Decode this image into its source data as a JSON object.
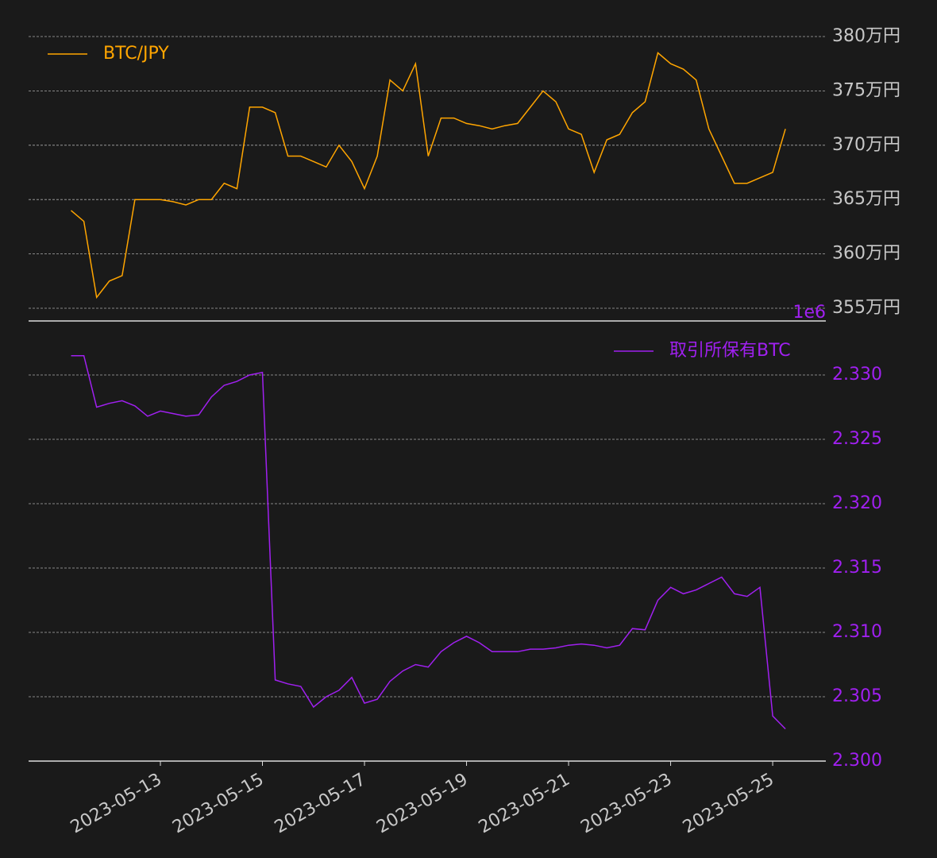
{
  "chart_data": [
    {
      "type": "line",
      "x": [
        "2023-05-11T06:00",
        "2023-05-11T12:00",
        "2023-05-11T18:00",
        "2023-05-12T00:00",
        "2023-05-12T06:00",
        "2023-05-12T12:00",
        "2023-05-12T18:00",
        "2023-05-13T00:00",
        "2023-05-13T06:00",
        "2023-05-13T12:00",
        "2023-05-13T18:00",
        "2023-05-14T00:00",
        "2023-05-14T06:00",
        "2023-05-14T12:00",
        "2023-05-14T18:00",
        "2023-05-15T00:00",
        "2023-05-15T06:00",
        "2023-05-15T12:00",
        "2023-05-15T18:00",
        "2023-05-16T00:00",
        "2023-05-16T06:00",
        "2023-05-16T12:00",
        "2023-05-16T18:00",
        "2023-05-17T00:00",
        "2023-05-17T06:00",
        "2023-05-17T12:00",
        "2023-05-17T18:00",
        "2023-05-18T00:00",
        "2023-05-18T06:00",
        "2023-05-18T12:00",
        "2023-05-18T18:00",
        "2023-05-19T00:00",
        "2023-05-19T06:00",
        "2023-05-19T12:00",
        "2023-05-19T18:00",
        "2023-05-20T00:00",
        "2023-05-20T06:00",
        "2023-05-20T12:00",
        "2023-05-20T18:00",
        "2023-05-21T00:00",
        "2023-05-21T06:00",
        "2023-05-21T12:00",
        "2023-05-21T18:00",
        "2023-05-22T00:00",
        "2023-05-22T06:00",
        "2023-05-22T12:00",
        "2023-05-22T18:00",
        "2023-05-23T00:00",
        "2023-05-23T06:00",
        "2023-05-23T12:00",
        "2023-05-23T18:00",
        "2023-05-24T00:00",
        "2023-05-24T06:00",
        "2023-05-24T12:00",
        "2023-05-24T18:00",
        "2023-05-25T00:00",
        "2023-05-25T06:00"
      ],
      "series": [
        {
          "name": "BTC/JPY",
          "color": "#ffa500",
          "values": [
            3640000,
            3630000,
            3560000,
            3575000,
            3580000,
            3650000,
            3650000,
            3650000,
            3648000,
            3645000,
            3650000,
            3650000,
            3665000,
            3660000,
            3735000,
            3735000,
            3730000,
            3690000,
            3690000,
            3685000,
            3680000,
            3700000,
            3685000,
            3660000,
            3690000,
            3760000,
            3750000,
            3775000,
            3690000,
            3725000,
            3725000,
            3720000,
            3718000,
            3715000,
            3718000,
            3720000,
            3735000,
            3750000,
            3740000,
            3715000,
            3710000,
            3675000,
            3705000,
            3710000,
            3730000,
            3740000,
            3785000,
            3775000,
            3770000,
            3760000,
            3715000,
            3690000,
            3665000,
            3665000,
            3670000,
            3675000,
            3715000
          ]
        }
      ],
      "xlim": [
        "2023-05-10T10:00",
        "2023-05-26T01:00"
      ],
      "ylim": [
        3538300,
        3811700
      ],
      "yticks": [
        {
          "value": 3550000,
          "label": "355万円"
        },
        {
          "value": 3600000,
          "label": "360万円"
        },
        {
          "value": 3650000,
          "label": "365万円"
        },
        {
          "value": 3700000,
          "label": "370万円"
        },
        {
          "value": 3750000,
          "label": "375万円"
        },
        {
          "value": 3800000,
          "label": "380万円"
        }
      ],
      "grid": true,
      "legend": "upper left"
    },
    {
      "type": "line",
      "x": [
        "2023-05-11T06:00",
        "2023-05-11T12:00",
        "2023-05-11T18:00",
        "2023-05-12T00:00",
        "2023-05-12T06:00",
        "2023-05-12T12:00",
        "2023-05-12T18:00",
        "2023-05-13T00:00",
        "2023-05-13T06:00",
        "2023-05-13T12:00",
        "2023-05-13T18:00",
        "2023-05-14T00:00",
        "2023-05-14T06:00",
        "2023-05-14T12:00",
        "2023-05-14T18:00",
        "2023-05-15T00:00",
        "2023-05-15T06:00",
        "2023-05-15T12:00",
        "2023-05-15T18:00",
        "2023-05-16T00:00",
        "2023-05-16T06:00",
        "2023-05-16T12:00",
        "2023-05-16T18:00",
        "2023-05-17T00:00",
        "2023-05-17T06:00",
        "2023-05-17T12:00",
        "2023-05-17T18:00",
        "2023-05-18T00:00",
        "2023-05-18T06:00",
        "2023-05-18T12:00",
        "2023-05-18T18:00",
        "2023-05-19T00:00",
        "2023-05-19T06:00",
        "2023-05-19T12:00",
        "2023-05-19T18:00",
        "2023-05-20T00:00",
        "2023-05-20T06:00",
        "2023-05-20T12:00",
        "2023-05-20T18:00",
        "2023-05-21T00:00",
        "2023-05-21T06:00",
        "2023-05-21T12:00",
        "2023-05-21T18:00",
        "2023-05-22T00:00",
        "2023-05-22T06:00",
        "2023-05-22T12:00",
        "2023-05-22T18:00",
        "2023-05-23T00:00",
        "2023-05-23T06:00",
        "2023-05-23T12:00",
        "2023-05-23T18:00",
        "2023-05-24T00:00",
        "2023-05-24T06:00",
        "2023-05-24T12:00",
        "2023-05-24T18:00",
        "2023-05-25T00:00",
        "2023-05-25T06:00"
      ],
      "series": [
        {
          "name": "取引所保有BTC",
          "color": "#a020f0",
          "values": [
            2.3315,
            2.3315,
            2.3275,
            2.3278,
            2.328,
            2.3276,
            2.3268,
            2.3272,
            2.327,
            2.3268,
            2.3269,
            2.3283,
            2.3292,
            2.3295,
            2.33,
            2.3302,
            2.3063,
            2.306,
            2.3058,
            2.3042,
            2.305,
            2.3055,
            2.3065,
            2.3045,
            2.3048,
            2.3062,
            2.307,
            2.3075,
            2.3073,
            2.3085,
            2.3092,
            2.3097,
            2.3092,
            2.3085,
            2.3085,
            2.3085,
            2.3087,
            2.3087,
            2.3088,
            2.309,
            2.3091,
            2.309,
            2.3088,
            2.309,
            2.3103,
            2.3102,
            2.3125,
            2.3135,
            2.313,
            2.3133,
            2.3138,
            2.3143,
            2.313,
            2.3128,
            2.3135,
            2.3035,
            2.3025
          ]
        }
      ],
      "xlim": [
        "2023-05-10T10:00",
        "2023-05-26T01:00"
      ],
      "xticks": [
        "2023-05-13",
        "2023-05-15",
        "2023-05-17",
        "2023-05-19",
        "2023-05-21",
        "2023-05-23",
        "2023-05-25"
      ],
      "ylim": [
        2.3,
        2.3342
      ],
      "yticks": [
        {
          "value": 2.3,
          "label": "2.300"
        },
        {
          "value": 2.305,
          "label": "2.305"
        },
        {
          "value": 2.31,
          "label": "2.310"
        },
        {
          "value": 2.315,
          "label": "2.315"
        },
        {
          "value": 2.32,
          "label": "2.320"
        },
        {
          "value": 2.325,
          "label": "2.325"
        },
        {
          "value": 2.33,
          "label": "2.330"
        }
      ],
      "offset_label": "1e6",
      "grid": true,
      "legend": "upper right"
    }
  ]
}
